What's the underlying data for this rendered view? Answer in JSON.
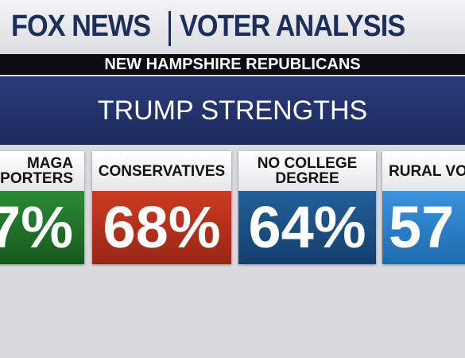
{
  "header": {
    "brand": "FOX NEWS",
    "section": "VOTER ANALYSIS",
    "subtitle": "NEW HAMPSHIRE REPUBLICANS"
  },
  "title": "TRUMP STRENGTHS",
  "cards": [
    {
      "label": [
        "MAGA",
        "PORTERS"
      ],
      "value": "7%"
    },
    {
      "label": [
        "CONSERVATIVES"
      ],
      "value": "68%"
    },
    {
      "label": [
        "NO COLLEGE",
        "DEGREE"
      ],
      "value": "64%"
    },
    {
      "label": [
        "RURAL VO"
      ],
      "value": "57"
    }
  ]
}
